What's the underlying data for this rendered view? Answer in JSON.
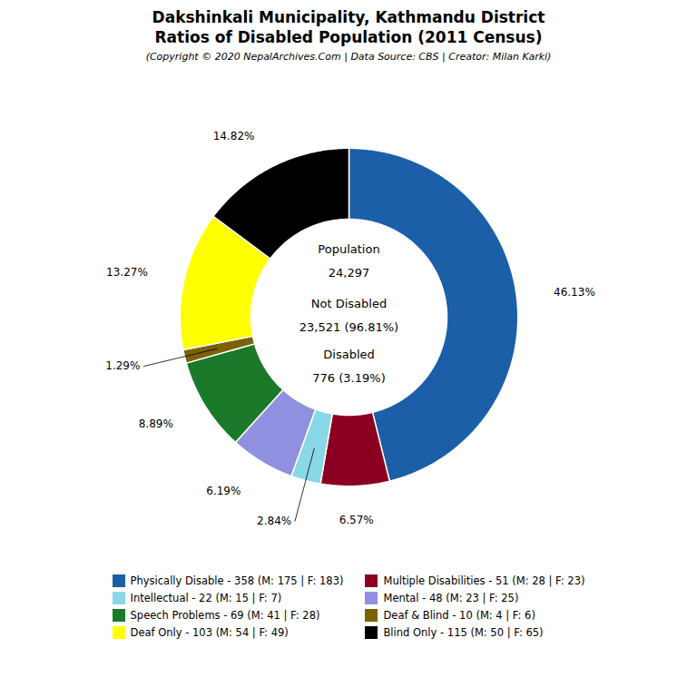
{
  "chart_data": {
    "type": "pie",
    "title": "Dakshinkali Municipality, Kathmandu District\nRatios of Disabled Population (2011 Census)",
    "subtitle": "(Copyright © 2020 NepalArchives.Com | Data Source: CBS | Creator: Milan Karki)",
    "categories": [
      "Physically Disable - 358 (M: 175 | F: 183)",
      "Multiple Disabilities - 51 (M: 28 | F: 23)",
      "Intellectual - 22 (M: 15 | F: 7)",
      "Mental - 48 (M: 23 | F: 25)",
      "Speech Problems - 69 (M: 41 | F: 28)",
      "Deaf & Blind - 10 (M: 4 | F: 6)",
      "Deaf Only - 103 (M: 54 | F: 49)",
      "Blind Only - 115 (M: 50 | F: 65)"
    ],
    "values": [
      46.13,
      6.57,
      2.84,
      6.19,
      8.89,
      1.29,
      13.27,
      14.82
    ],
    "value_labels": [
      "46.13%",
      "6.57%",
      "2.84%",
      "6.19%",
      "8.89%",
      "1.29%",
      "13.27%",
      "14.82%"
    ],
    "colors": [
      "#1b5fa8",
      "#8b0020",
      "#88d8e8",
      "#9090e0",
      "#1a7a2a",
      "#7b6200",
      "#ffff00",
      "#000000"
    ],
    "data_labels": true,
    "legend": "bottom",
    "tick_labels": false,
    "annotations": [
      "Population",
      "24,297",
      "Not Disabled",
      "23,521 (96.81%)",
      "Disabled",
      "776 (3.19%)"
    ]
  }
}
